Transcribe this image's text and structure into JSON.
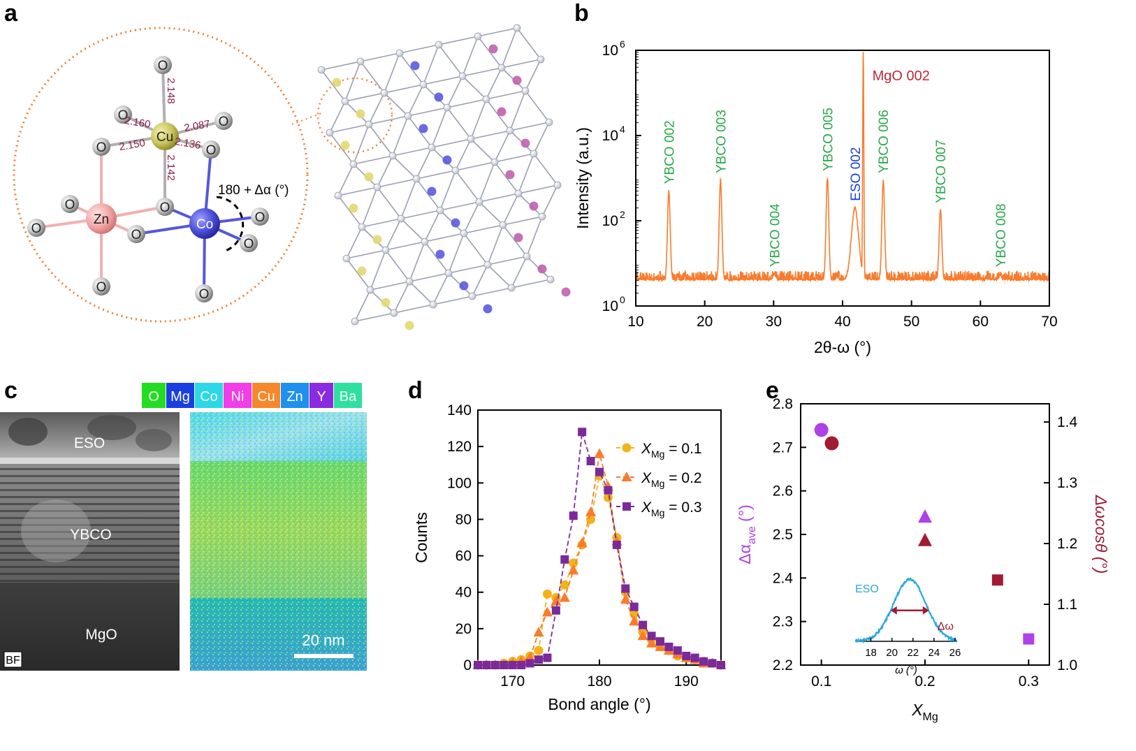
{
  "panel_labels": [
    "a",
    "b",
    "c",
    "d",
    "e"
  ],
  "panel_a": {
    "atoms": {
      "cu": "Cu",
      "zn": "Zn",
      "co": "Co",
      "o": "O"
    },
    "bond_lengths": [
      "2.148",
      "2.160",
      "2.087",
      "2.150",
      "2.136",
      "2.142"
    ],
    "angle_label": "180 + Δα (°)"
  },
  "panel_c": {
    "legend": [
      {
        "label": "O",
        "color": "#22dd22"
      },
      {
        "label": "Mg",
        "color": "#1a3fe0"
      },
      {
        "label": "Co",
        "color": "#2ad8e8"
      },
      {
        "label": "Ni",
        "color": "#f23de8"
      },
      {
        "label": "Cu",
        "color": "#f5882a"
      },
      {
        "label": "Zn",
        "color": "#1e90ee"
      },
      {
        "label": "Y",
        "color": "#8a2be2"
      },
      {
        "label": "Ba",
        "color": "#2ee0a0"
      }
    ],
    "layers": [
      "ESO",
      "YBCO",
      "MgO"
    ],
    "bf_label": "BF",
    "scale_bar": "20 nm"
  },
  "chart_data": [
    {
      "panel": "b",
      "type": "line",
      "xlabel": "2θ-ω (°)",
      "ylabel": "Intensity (a.u.)",
      "xlim": [
        10,
        70
      ],
      "ylim_log10": [
        0,
        6
      ],
      "y_scale": "log",
      "x_ticks": [
        "10",
        "20",
        "30",
        "40",
        "50",
        "60",
        "70"
      ],
      "y_ticks": [
        "10",
        "10",
        "10",
        "10"
      ],
      "y_tick_exponents": [
        "0",
        "2",
        "4",
        "6"
      ],
      "color": "#f97b2c",
      "peaks": [
        {
          "label": "YBCO 002",
          "x": 14.8,
          "log_intensity": 2.7,
          "color": "#2aa84a"
        },
        {
          "label": "YBCO 003",
          "x": 22.3,
          "log_intensity": 2.95,
          "color": "#2aa84a"
        },
        {
          "label": "YBCO 004",
          "x": 30.1,
          "log_intensity": 0.75,
          "color": "#2aa84a"
        },
        {
          "label": "YBCO 005",
          "x": 37.8,
          "log_intensity": 3.0,
          "color": "#2aa84a"
        },
        {
          "label": "ESO 002",
          "x": 41.8,
          "log_intensity": 2.3,
          "color": "#1a3fe0"
        },
        {
          "label": "MgO 002",
          "x": 43.0,
          "log_intensity": 6.0,
          "color": "#c0283a"
        },
        {
          "label": "YBCO 006",
          "x": 45.9,
          "log_intensity": 2.95,
          "color": "#2aa84a"
        },
        {
          "label": "YBCO 007",
          "x": 54.2,
          "log_intensity": 2.25,
          "color": "#2aa84a"
        },
        {
          "label": "YBCO 008",
          "x": 62.9,
          "log_intensity": 0.75,
          "color": "#2aa84a"
        }
      ],
      "baseline_log_intensity": 0.6
    },
    {
      "panel": "d",
      "type": "line",
      "xlabel": "Bond angle (°)",
      "ylabel": "Counts",
      "xlim": [
        166,
        194
      ],
      "ylim": [
        0,
        140
      ],
      "x_ticks": [
        "170",
        "180",
        "190"
      ],
      "y_ticks": [
        "0",
        "20",
        "40",
        "60",
        "80",
        "100",
        "120",
        "140"
      ],
      "series": [
        {
          "name": "X",
          "sub": "Mg",
          "value_text": " = 0.1",
          "color": "#f3b21a",
          "marker": "circle",
          "x": [
            166,
            167,
            168,
            169,
            170,
            171,
            172,
            173,
            174,
            175,
            176,
            177,
            178,
            179,
            180,
            181,
            182,
            183,
            184,
            185,
            186,
            187,
            188,
            189,
            190,
            191,
            192,
            193,
            194
          ],
          "y": [
            0,
            0,
            0,
            1,
            2,
            3,
            5,
            8,
            39,
            37,
            44,
            56,
            66,
            80,
            104,
            92,
            70,
            40,
            28,
            18,
            14,
            10,
            8,
            5,
            4,
            3,
            2,
            1,
            0
          ]
        },
        {
          "name": "X",
          "sub": "Mg",
          "value_text": " = 0.2",
          "color": "#f97b2c",
          "marker": "triangle",
          "x": [
            166,
            167,
            168,
            169,
            170,
            171,
            172,
            173,
            174,
            175,
            176,
            177,
            178,
            179,
            180,
            181,
            182,
            183,
            184,
            185,
            186,
            187,
            188,
            189,
            190,
            191,
            192,
            193,
            194
          ],
          "y": [
            0,
            0,
            0,
            0,
            1,
            2,
            4,
            18,
            29,
            35,
            37,
            52,
            67,
            84,
            116,
            98,
            68,
            36,
            24,
            16,
            12,
            10,
            8,
            6,
            4,
            3,
            1,
            1,
            0
          ]
        },
        {
          "name": "X",
          "sub": "Mg",
          "value_text": " = 0.3",
          "color": "#7b2a9a",
          "marker": "square",
          "x": [
            166,
            167,
            168,
            169,
            170,
            171,
            172,
            173,
            174,
            175,
            176,
            177,
            178,
            179,
            180,
            181,
            182,
            183,
            184,
            185,
            186,
            187,
            188,
            189,
            190,
            191,
            192,
            193,
            194
          ],
          "y": [
            0,
            0,
            0,
            0,
            0,
            0,
            1,
            3,
            4,
            30,
            58,
            82,
            128,
            112,
            106,
            96,
            66,
            42,
            32,
            22,
            16,
            13,
            10,
            8,
            5,
            4,
            2,
            1,
            0
          ]
        }
      ]
    },
    {
      "panel": "e",
      "type": "scatter",
      "xlabel": "X",
      "xlabel_sub": "Mg",
      "ylabel_left": "Δα",
      "ylabel_left_sub": "ave",
      "ylabel_left_unit": " (°)",
      "ylabel_right": "Δωcosθ (°)",
      "xlim": [
        0.08,
        0.32
      ],
      "ylim_left": [
        2.2,
        2.8
      ],
      "ylim_right": [
        1.0,
        1.43
      ],
      "x_ticks": [
        "0.1",
        "0.2",
        "0.3"
      ],
      "y_ticks_left": [
        "2.2",
        "2.3",
        "2.4",
        "2.5",
        "2.6",
        "2.7",
        "2.8"
      ],
      "y_ticks_right": [
        "1.0",
        "1.1",
        "1.2",
        "1.3",
        "1.4"
      ],
      "series": [
        {
          "axis": "left",
          "color": "#b040e8",
          "points": [
            {
              "x": 0.1,
              "y": 2.74,
              "marker": "circle"
            },
            {
              "x": 0.2,
              "y": 2.54,
              "marker": "triangle"
            },
            {
              "x": 0.3,
              "y": 2.26,
              "marker": "square"
            }
          ]
        },
        {
          "axis": "right",
          "color": "#a01c34",
          "points": [
            {
              "x": 0.11,
              "y": 1.365,
              "marker": "circle"
            },
            {
              "x": 0.2,
              "y": 1.205,
              "marker": "triangle"
            },
            {
              "x": 0.27,
              "y": 1.14,
              "marker": "square"
            }
          ]
        }
      ],
      "inset": {
        "type": "line",
        "label": "ESO",
        "width_label": "Δω",
        "xlabel": "ω (°)",
        "x_ticks": [
          "18",
          "20",
          "22",
          "24",
          "26"
        ],
        "xlim": [
          16.5,
          26.2
        ],
        "peak_center": 21.7,
        "peak_sigma": 1.55,
        "color": "#29a8e0"
      }
    }
  ]
}
